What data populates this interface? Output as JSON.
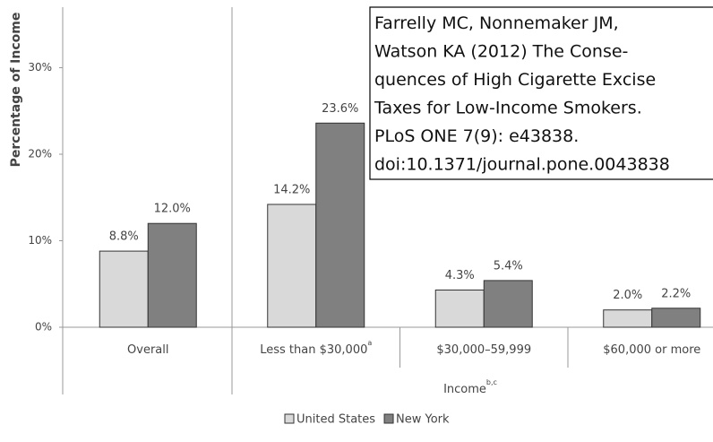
{
  "chart_data": {
    "type": "bar",
    "y_label": "Percentage of Income",
    "x_label": "Income",
    "x_label_superscript": "b,c",
    "categories": [
      "Overall",
      "Less than $30,000",
      "$30,000–59,999",
      "$60,000 or more"
    ],
    "category_superscripts": [
      null,
      "a",
      null,
      null
    ],
    "series": [
      {
        "name": "United States",
        "color": "#d9d9d9",
        "values": [
          8.8,
          14.2,
          4.3,
          2.0
        ],
        "value_labels": [
          "8.8%",
          "14.2%",
          "4.3%",
          "2.0%"
        ]
      },
      {
        "name": "New York",
        "color": "#808080",
        "values": [
          12.0,
          23.6,
          5.4,
          2.2
        ],
        "value_labels": [
          "12.0%",
          "23.6%",
          "5.4%",
          "2.2%"
        ]
      }
    ],
    "ylim": [
      0,
      37
    ],
    "yticks": [
      {
        "value": 0,
        "label": "0%"
      },
      {
        "value": 10,
        "label": "10%"
      },
      {
        "value": 20,
        "label": "20%"
      },
      {
        "value": 30,
        "label": "30%"
      }
    ],
    "legend": "bottom",
    "annotation": [
      "Farrelly MC, Nonnemaker JM,",
      "Watson KA (2012) The Conse-",
      "quences of High Cigarette Excise",
      "Taxes for Low-Income Smokers.",
      "PLoS ONE 7(9): e43838.",
      "doi:10.1371/journal.pone.0043838"
    ]
  }
}
